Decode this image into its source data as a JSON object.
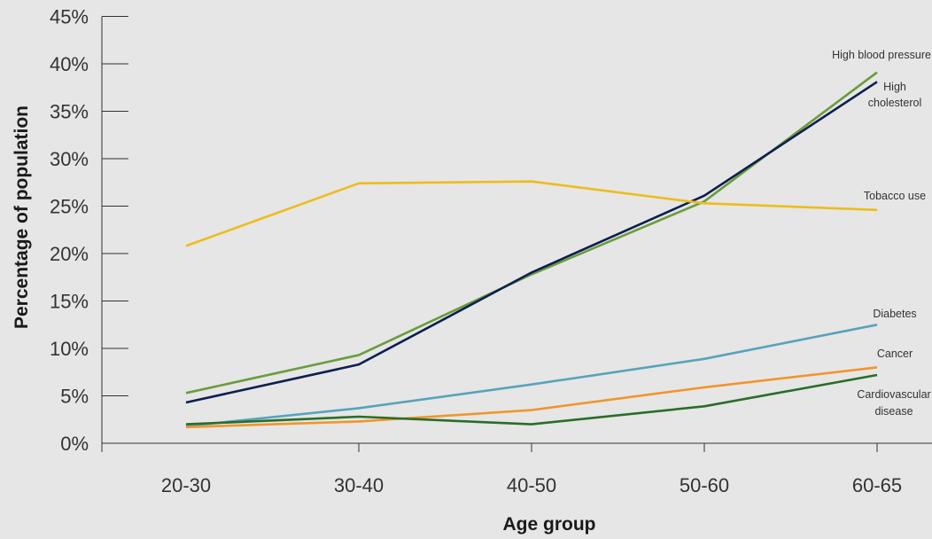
{
  "chart_data": {
    "type": "line",
    "title": "",
    "xlabel": "Age group",
    "ylabel": "Percentage of population",
    "categories": [
      "20-30",
      "30-40",
      "40-50",
      "50-60",
      "60-65"
    ],
    "y_ticks": [
      "0%",
      "5%",
      "10%",
      "15%",
      "20%",
      "25%",
      "30%",
      "35%",
      "40%",
      "45%"
    ],
    "ylim": [
      0,
      45
    ],
    "grid": false,
    "legend": "inline labels at right end of lines",
    "series": [
      {
        "name": "High blood pressure",
        "label_lines": [
          "High blood pressure"
        ],
        "color": "#6a9c3c",
        "values": [
          5.3,
          9.3,
          17.8,
          25.5,
          39.1
        ]
      },
      {
        "name": "High cholesterol",
        "label_lines": [
          "High",
          "cholesterol"
        ],
        "color": "#0d1f4f",
        "values": [
          4.3,
          8.3,
          18.0,
          26.1,
          38.1
        ]
      },
      {
        "name": "Tobacco use",
        "label_lines": [
          "Tobacco use"
        ],
        "color": "#ecbd1c",
        "values": [
          20.8,
          27.4,
          27.6,
          25.3,
          24.6
        ]
      },
      {
        "name": "Diabetes",
        "label_lines": [
          "Diabetes"
        ],
        "color": "#57a3bd",
        "values": [
          1.8,
          3.7,
          6.2,
          8.9,
          12.5
        ]
      },
      {
        "name": "Cancer",
        "label_lines": [
          "Cancer"
        ],
        "color": "#f1952d",
        "values": [
          1.7,
          2.3,
          3.5,
          5.9,
          8.0
        ]
      },
      {
        "name": "Cardiovascular disease",
        "label_lines": [
          "Cardiovascular",
          "disease"
        ],
        "color": "#2a6d28",
        "values": [
          2.0,
          2.8,
          2.0,
          3.9,
          7.2
        ]
      }
    ]
  }
}
